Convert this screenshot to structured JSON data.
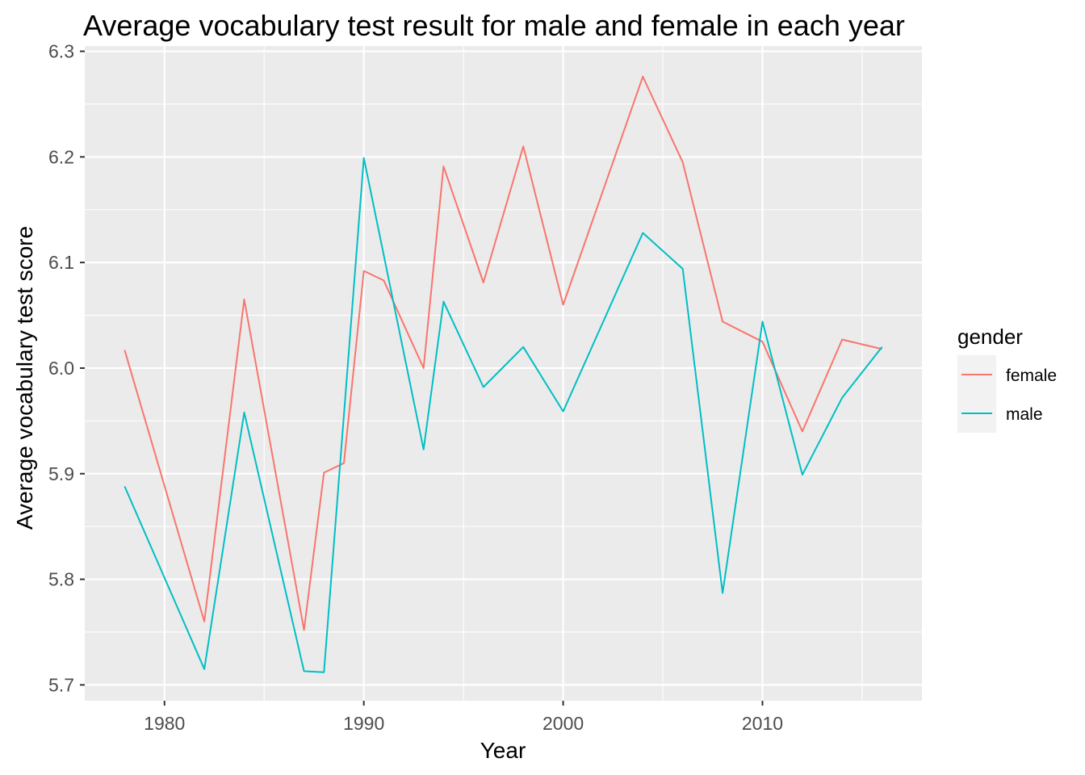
{
  "chart_data": {
    "type": "line",
    "title": "Average vocabulary test result for male and female in each year",
    "xlabel": "Year",
    "ylabel": "Average vocabulary test score",
    "xlim": [
      1976,
      2018
    ],
    "ylim": [
      5.685,
      6.305
    ],
    "xticks": [
      1980,
      1990,
      2000,
      2010
    ],
    "yticks": [
      5.7,
      5.8,
      5.9,
      6.0,
      6.1,
      6.2,
      6.3
    ],
    "ytick_labels": [
      "5.7",
      "5.8",
      "5.9",
      "6.0",
      "6.1",
      "6.2",
      "6.3"
    ],
    "grid": true,
    "legend": {
      "title": "gender",
      "position": "right"
    },
    "series": [
      {
        "name": "female",
        "color": "#F8766D",
        "x": [
          1978,
          1982,
          1984,
          1987,
          1988,
          1989,
          1990,
          1991,
          1993,
          1994,
          1996,
          1998,
          2000,
          2004,
          2006,
          2008,
          2010,
          2012,
          2014,
          2016
        ],
        "y": [
          6.017,
          5.76,
          6.065,
          5.752,
          5.901,
          5.91,
          6.092,
          6.083,
          6.0,
          6.191,
          6.081,
          6.21,
          6.06,
          6.276,
          6.195,
          6.044,
          6.025,
          5.94,
          6.027,
          6.018
        ]
      },
      {
        "name": "male",
        "color": "#00BFC4",
        "x": [
          1978,
          1982,
          1984,
          1987,
          1988,
          1990,
          1993,
          1994,
          1996,
          1998,
          2000,
          2004,
          2006,
          2008,
          2010,
          2012,
          2014,
          2016
        ],
        "y": [
          5.888,
          5.715,
          5.958,
          5.713,
          5.712,
          6.199,
          5.923,
          6.063,
          5.982,
          6.02,
          5.959,
          6.128,
          6.094,
          5.787,
          6.044,
          5.899,
          5.972,
          6.02
        ]
      }
    ]
  }
}
